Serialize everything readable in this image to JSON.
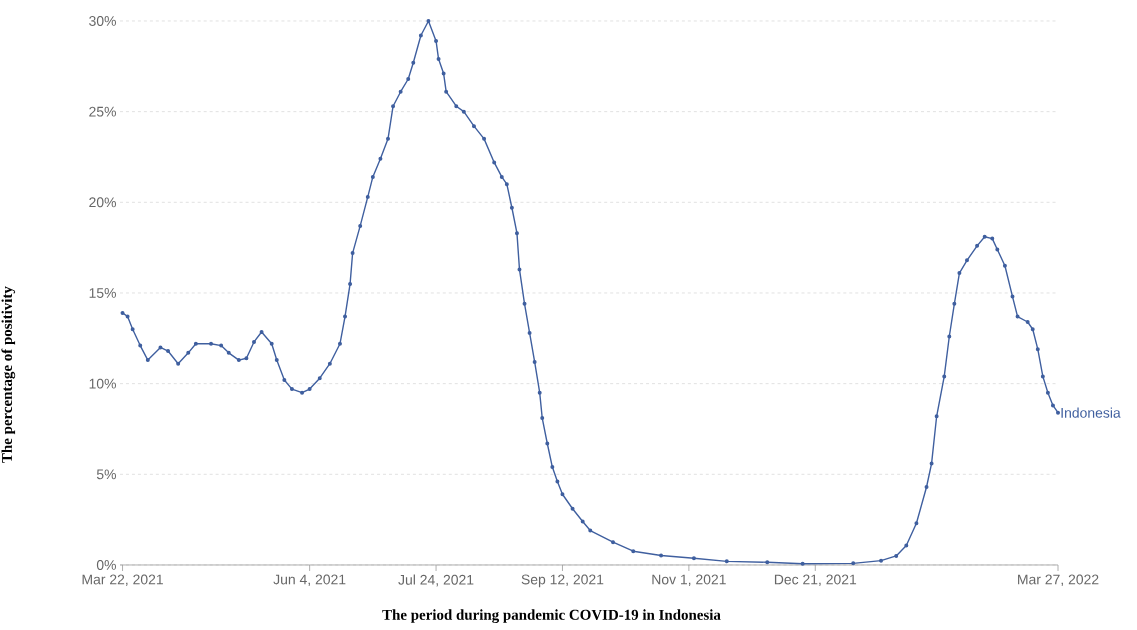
{
  "chart_data": {
    "type": "line",
    "xlabel": "The period during pandemic COVID-19 in Indonesia",
    "ylabel": "The percentage of positivity",
    "x": [
      "2021-03-22",
      "2021-03-24",
      "2021-03-26",
      "2021-03-29",
      "2021-04-01",
      "2021-04-06",
      "2021-04-09",
      "2021-04-13",
      "2021-04-17",
      "2021-04-20",
      "2021-04-26",
      "2021-04-30",
      "2021-05-03",
      "2021-05-07",
      "2021-05-10",
      "2021-05-13",
      "2021-05-16",
      "2021-05-20",
      "2021-05-22",
      "2021-05-25",
      "2021-05-28",
      "2021-06-01",
      "2021-06-04",
      "2021-06-08",
      "2021-06-12",
      "2021-06-16",
      "2021-06-18",
      "2021-06-20",
      "2021-06-21",
      "2021-06-24",
      "2021-06-27",
      "2021-06-29",
      "2021-07-02",
      "2021-07-05",
      "2021-07-07",
      "2021-07-10",
      "2021-07-13",
      "2021-07-15",
      "2021-07-18",
      "2021-07-21",
      "2021-07-24",
      "2021-07-25",
      "2021-07-27",
      "2021-07-28",
      "2021-08-01",
      "2021-08-04",
      "2021-08-08",
      "2021-08-12",
      "2021-08-16",
      "2021-08-19",
      "2021-08-21",
      "2021-08-23",
      "2021-08-25",
      "2021-08-26",
      "2021-08-28",
      "2021-08-30",
      "2021-09-01",
      "2021-09-03",
      "2021-09-04",
      "2021-09-06",
      "2021-09-08",
      "2021-09-10",
      "2021-09-12",
      "2021-09-16",
      "2021-09-20",
      "2021-09-23",
      "2021-10-02",
      "2021-10-10",
      "2021-10-21",
      "2021-11-03",
      "2021-11-16",
      "2021-12-02",
      "2021-12-16",
      "2022-01-05",
      "2022-01-16",
      "2022-01-22",
      "2022-01-26",
      "2022-01-30",
      "2022-02-03",
      "2022-02-05",
      "2022-02-07",
      "2022-02-10",
      "2022-02-12",
      "2022-02-14",
      "2022-02-16",
      "2022-02-19",
      "2022-02-23",
      "2022-02-26",
      "2022-03-01",
      "2022-03-03",
      "2022-03-06",
      "2022-03-09",
      "2022-03-11",
      "2022-03-15",
      "2022-03-17",
      "2022-03-19",
      "2022-03-21",
      "2022-03-23",
      "2022-03-25",
      "2022-03-27"
    ],
    "series": [
      {
        "name": "Indonesia",
        "color": "#3f5f9f",
        "values": [
          13.9,
          13.7,
          13.0,
          12.1,
          11.3,
          12.0,
          11.8,
          11.1,
          11.7,
          12.2,
          12.2,
          12.1,
          11.7,
          11.3,
          11.4,
          12.3,
          12.85,
          12.2,
          11.3,
          10.2,
          9.7,
          9.5,
          9.7,
          10.3,
          11.1,
          12.2,
          13.7,
          15.5,
          17.2,
          18.7,
          20.3,
          21.4,
          22.4,
          23.5,
          25.3,
          26.1,
          26.8,
          27.7,
          29.2,
          30.0,
          28.9,
          27.9,
          27.1,
          26.1,
          25.3,
          25.0,
          24.2,
          23.5,
          22.2,
          21.4,
          21.0,
          19.7,
          18.3,
          16.3,
          14.4,
          12.8,
          11.2,
          9.5,
          8.1,
          6.7,
          5.4,
          4.6,
          3.9,
          3.1,
          2.4,
          1.9,
          1.26,
          0.76,
          0.52,
          0.37,
          0.2,
          0.15,
          0.07,
          0.09,
          0.24,
          0.5,
          1.07,
          2.3,
          4.3,
          5.6,
          8.2,
          10.4,
          12.6,
          14.4,
          16.1,
          16.8,
          17.6,
          18.1,
          18.0,
          17.4,
          16.5,
          14.8,
          13.7,
          13.4,
          13.0,
          11.9,
          10.4,
          9.5,
          8.8,
          8.4
        ]
      }
    ],
    "xlim": [
      "2021-03-21",
      "2022-03-27"
    ],
    "xticks": [
      {
        "value": "2021-03-22",
        "label": "Mar 22, 2021"
      },
      {
        "value": "2021-06-04",
        "label": "Jun 4, 2021"
      },
      {
        "value": "2021-07-24",
        "label": "Jul 24, 2021"
      },
      {
        "value": "2021-09-12",
        "label": "Sep 12, 2021"
      },
      {
        "value": "2021-11-01",
        "label": "Nov 1, 2021"
      },
      {
        "value": "2021-12-21",
        "label": "Dec 21, 2021"
      },
      {
        "value": "2022-03-27",
        "label": "Mar 27, 2022"
      }
    ],
    "ylim": [
      0,
      30
    ],
    "yticks": [
      {
        "value": 0,
        "label": "0%"
      },
      {
        "value": 5,
        "label": "5%"
      },
      {
        "value": 10,
        "label": "10%"
      },
      {
        "value": 15,
        "label": "15%"
      },
      {
        "value": 20,
        "label": "20%"
      },
      {
        "value": 25,
        "label": "25%"
      },
      {
        "value": 30,
        "label": "30%"
      }
    ],
    "grid": "y",
    "marker": "circle",
    "line_style": "solid"
  }
}
